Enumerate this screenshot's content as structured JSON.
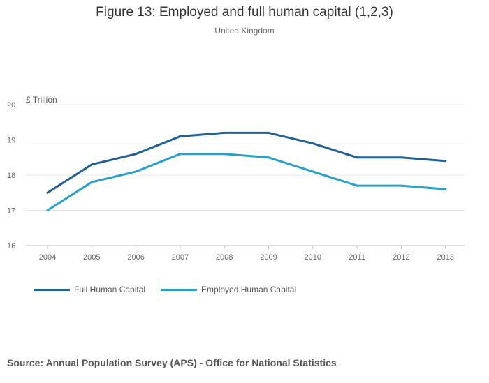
{
  "chart_data": {
    "type": "line",
    "title": "Figure 13: Employed and full human capital (1,2,3)",
    "subtitle": "United Kingdom",
    "ylabel": "£ Trillion",
    "xlabel": "",
    "x": [
      "2004",
      "2005",
      "2006",
      "2007",
      "2008",
      "2009",
      "2010",
      "2011",
      "2012",
      "2013"
    ],
    "ylim": [
      16,
      20
    ],
    "yticks": [
      "16",
      "17",
      "18",
      "19",
      "20"
    ],
    "grid": true,
    "legend_position": "bottom-left",
    "series": [
      {
        "name": "Full Human Capital",
        "color": "#206095",
        "values": [
          17.5,
          18.3,
          18.6,
          19.1,
          19.2,
          19.2,
          18.9,
          18.5,
          18.5,
          18.4
        ]
      },
      {
        "name": "Employed Human Capital",
        "color": "#27a0cc",
        "values": [
          17.0,
          17.8,
          18.1,
          18.6,
          18.6,
          18.5,
          18.1,
          17.7,
          17.7,
          17.6
        ]
      }
    ]
  },
  "source": "Source: Annual Population Survey (APS) - Office for National Statistics"
}
